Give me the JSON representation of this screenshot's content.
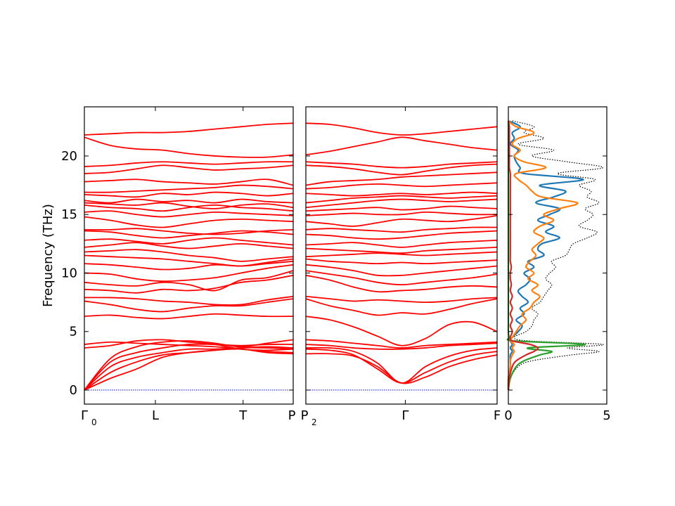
{
  "chart_data": [
    {
      "type": "line",
      "panel": "band-structure-left",
      "ylabel": "Frequency (THz)",
      "xticks": [
        "Γ",
        "L",
        "T",
        "P"
      ],
      "xticks_sub": [
        "0",
        "",
        "",
        ""
      ],
      "ylim": [
        -1.2,
        24.2
      ],
      "yticks": [
        0,
        5,
        10,
        15,
        20
      ],
      "band_color": "#ff0000",
      "zero_line_color": "#0000ff",
      "x": [
        0,
        0.125,
        0.25,
        0.375,
        0.5,
        0.625,
        0.75,
        0.875,
        1.0
      ],
      "ticks_at": [
        0,
        0.34,
        0.76,
        1.0
      ],
      "bands": [
        [
          0,
          1.0,
          1.8,
          2.8,
          3.2,
          3.4,
          3.5,
          3.2,
          3.1
        ],
        [
          0,
          1.5,
          2.4,
          3.0,
          3.2,
          3.4,
          3.6,
          3.6,
          3.5
        ],
        [
          0,
          2.0,
          2.8,
          3.2,
          3.5,
          3.5,
          3.6,
          3.7,
          3.6
        ],
        [
          0,
          2.4,
          3.2,
          3.6,
          3.9,
          3.9,
          3.8,
          3.9,
          3.9
        ],
        [
          0,
          2.7,
          3.7,
          4.1,
          4.2,
          4.0,
          3.7,
          4.0,
          4.3
        ],
        [
          3.6,
          3.8,
          4.2,
          4.3,
          4.1,
          3.9,
          3.5,
          3.4,
          3.5
        ],
        [
          3.9,
          4.1,
          4.0,
          3.9,
          3.8,
          3.7,
          3.5,
          3.3,
          3.2
        ],
        [
          6.3,
          6.4,
          6.2,
          6.1,
          6.3,
          6.5,
          6.4,
          6.3,
          6.3
        ],
        [
          7.6,
          7.3,
          6.9,
          6.7,
          7.0,
          7.2,
          7.2,
          7.5,
          7.8
        ],
        [
          7.9,
          7.9,
          7.8,
          7.6,
          7.5,
          7.3,
          7.3,
          7.7,
          8.0
        ],
        [
          8.6,
          8.5,
          8.3,
          8.6,
          8.5,
          8.7,
          9.2,
          9.4,
          9.8
        ],
        [
          9.2,
          9.0,
          8.9,
          9.2,
          9.0,
          8.5,
          9.4,
          9.6,
          10.2
        ],
        [
          10.0,
          9.9,
          9.5,
          9.3,
          9.4,
          9.6,
          10.0,
          10.4,
          10.7
        ],
        [
          10.8,
          10.7,
          10.5,
          10.3,
          10.4,
          10.7,
          10.6,
          10.9,
          11.2
        ],
        [
          11.5,
          11.4,
          11.3,
          11.2,
          11.0,
          10.8,
          10.6,
          10.8,
          11.0
        ],
        [
          11.8,
          11.9,
          12.0,
          11.8,
          11.5,
          11.3,
          11.0,
          11.2,
          11.4
        ],
        [
          12.2,
          12.4,
          12.6,
          12.3,
          12.1,
          12.3,
          12.5,
          12.3,
          12.1
        ],
        [
          12.8,
          12.9,
          12.7,
          12.5,
          12.8,
          13.0,
          12.8,
          12.6,
          12.4
        ],
        [
          13.6,
          13.5,
          13.2,
          13.0,
          13.2,
          13.4,
          13.6,
          13.5,
          13.3
        ],
        [
          13.7,
          13.7,
          13.8,
          13.6,
          13.4,
          13.3,
          13.4,
          13.6,
          13.7
        ],
        [
          14.8,
          14.5,
          14.1,
          13.9,
          14.2,
          14.5,
          14.6,
          14.5,
          14.4
        ],
        [
          15.2,
          15.3,
          15.0,
          14.8,
          15.0,
          15.2,
          15.1,
          15.0,
          14.9
        ],
        [
          15.8,
          15.6,
          15.5,
          15.3,
          15.6,
          15.8,
          15.6,
          15.5,
          15.3
        ],
        [
          16.0,
          15.9,
          15.8,
          16.0,
          15.7,
          15.5,
          15.8,
          15.9,
          15.6
        ],
        [
          16.2,
          16.0,
          16.3,
          16.1,
          16.2,
          16.0,
          16.3,
          16.1,
          16.0
        ],
        [
          16.7,
          16.6,
          16.5,
          16.8,
          16.7,
          16.9,
          16.8,
          16.6,
          16.8
        ],
        [
          16.9,
          16.9,
          17.0,
          17.1,
          17.2,
          17.3,
          17.5,
          17.4,
          17.2
        ],
        [
          17.8,
          17.9,
          18.0,
          17.8,
          17.7,
          17.6,
          17.8,
          18.0,
          17.5
        ],
        [
          18.5,
          18.6,
          18.9,
          19.2,
          19.0,
          18.8,
          18.9,
          19.0,
          19.2
        ],
        [
          19.1,
          19.2,
          19.4,
          19.5,
          19.4,
          19.3,
          19.4,
          19.5,
          19.5
        ],
        [
          21.6,
          20.9,
          20.6,
          20.5,
          20.2,
          20.0,
          19.9,
          19.9,
          20.1
        ],
        [
          21.8,
          21.9,
          22.0,
          22.0,
          22.1,
          22.3,
          22.5,
          22.7,
          22.8
        ]
      ]
    },
    {
      "type": "line",
      "panel": "band-structure-right",
      "xticks": [
        "P",
        "Γ",
        "F"
      ],
      "xticks_sub": [
        "2",
        "",
        ""
      ],
      "ylim": [
        -1.2,
        24.2
      ],
      "band_color": "#ff0000",
      "zero_line_color": "#0000ff",
      "x": [
        0,
        0.125,
        0.25,
        0.375,
        0.5,
        0.625,
        0.75,
        0.875,
        1.0
      ],
      "ticks_at": [
        0,
        0.52,
        1.0
      ],
      "bands": [
        [
          3.1,
          3.1,
          2.9,
          2.0,
          0.6,
          1.1,
          2.0,
          2.6,
          3.0
        ],
        [
          3.5,
          3.4,
          3.0,
          1.8,
          0.6,
          1.5,
          2.4,
          3.0,
          3.3
        ],
        [
          3.6,
          3.6,
          3.3,
          2.3,
          0.6,
          2.0,
          2.9,
          3.4,
          3.6
        ],
        [
          3.9,
          3.8,
          3.6,
          3.5,
          3.5,
          3.6,
          3.8,
          3.9,
          4.0
        ],
        [
          4.3,
          4.2,
          4.0,
          3.8,
          3.6,
          3.8,
          3.9,
          4.0,
          4.1
        ],
        [
          6.3,
          6.0,
          5.4,
          4.6,
          3.8,
          4.4,
          5.6,
          5.8,
          5.0
        ],
        [
          7.8,
          7.2,
          6.8,
          6.4,
          6.6,
          6.5,
          6.9,
          7.4,
          7.8
        ],
        [
          8.0,
          7.8,
          7.6,
          7.7,
          7.6,
          7.5,
          7.6,
          7.8,
          7.9
        ],
        [
          9.8,
          9.4,
          8.8,
          8.4,
          8.5,
          8.6,
          8.8,
          8.9,
          8.8
        ],
        [
          10.2,
          9.9,
          9.6,
          9.2,
          9.0,
          9.2,
          9.4,
          9.6,
          9.9
        ],
        [
          10.7,
          10.5,
          10.2,
          9.8,
          9.8,
          10.0,
          10.2,
          10.4,
          10.6
        ],
        [
          11.2,
          11.0,
          10.9,
          10.8,
          10.9,
          10.8,
          10.9,
          11.0,
          11.1
        ],
        [
          11.4,
          11.5,
          11.6,
          11.7,
          11.6,
          11.5,
          11.6,
          11.7,
          11.8
        ],
        [
          12.1,
          12.0,
          11.9,
          11.8,
          11.7,
          11.9,
          12.0,
          12.1,
          12.2
        ],
        [
          12.4,
          12.5,
          12.6,
          12.4,
          12.2,
          12.4,
          12.6,
          12.7,
          12.8
        ],
        [
          13.3,
          13.2,
          13.0,
          12.9,
          13.0,
          13.2,
          13.4,
          13.5,
          13.6
        ],
        [
          13.7,
          13.8,
          13.7,
          13.6,
          13.5,
          13.7,
          13.8,
          13.9,
          13.9
        ],
        [
          14.4,
          14.2,
          14.0,
          14.3,
          14.6,
          14.5,
          14.4,
          14.6,
          14.9
        ],
        [
          14.9,
          15.0,
          15.1,
          15.0,
          15.0,
          15.2,
          15.1,
          15.0,
          15.0
        ],
        [
          15.3,
          15.4,
          15.5,
          15.6,
          15.4,
          15.5,
          15.7,
          15.6,
          15.5
        ],
        [
          15.6,
          15.8,
          16.0,
          16.2,
          16.3,
          16.2,
          16.1,
          16.2,
          16.3
        ],
        [
          16.0,
          16.2,
          16.4,
          16.5,
          16.6,
          16.5,
          16.4,
          16.5,
          16.6
        ],
        [
          16.8,
          16.7,
          16.6,
          16.7,
          16.8,
          16.7,
          16.8,
          16.9,
          16.8
        ],
        [
          17.2,
          17.3,
          17.5,
          17.6,
          17.5,
          17.4,
          17.5,
          17.6,
          17.7
        ],
        [
          17.5,
          17.8,
          17.9,
          18.0,
          18.2,
          18.3,
          18.4,
          18.5,
          18.6
        ],
        [
          19.2,
          19.1,
          18.9,
          18.6,
          18.4,
          18.7,
          19.0,
          19.2,
          19.3
        ],
        [
          19.5,
          19.4,
          19.3,
          19.1,
          19.0,
          19.1,
          19.3,
          19.4,
          19.5
        ],
        [
          20.1,
          20.4,
          20.8,
          21.2,
          21.6,
          21.3,
          21.0,
          20.7,
          20.5
        ],
        [
          22.8,
          22.7,
          22.4,
          22.0,
          21.8,
          21.9,
          22.1,
          22.3,
          22.5
        ]
      ]
    },
    {
      "type": "line",
      "panel": "density-of-states",
      "orientation": "horizontal",
      "xticks": [
        "0",
        "5"
      ],
      "xlim": [
        0,
        5
      ],
      "ylim": [
        -1.2,
        24.2
      ],
      "freq": [
        0,
        1,
        2,
        2.5,
        3,
        3.3,
        3.6,
        3.9,
        4.2,
        4.5,
        5,
        5.5,
        6,
        6.5,
        7,
        7.5,
        8,
        8.5,
        9,
        9.5,
        10,
        10.5,
        11,
        11.5,
        12,
        12.5,
        13,
        13.5,
        14,
        14.5,
        15,
        15.5,
        16,
        16.5,
        17,
        17.5,
        18,
        18.5,
        19,
        19.5,
        20,
        20.5,
        21,
        21.5,
        22,
        22.5,
        23
      ],
      "series": [
        {
          "color": "#000000",
          "style": "dotted",
          "values": [
            0,
            0.1,
            0.5,
            1.2,
            3.2,
            4.6,
            3.0,
            4.8,
            1.0,
            0.3,
            0.9,
            1.2,
            1.3,
            1.5,
            1.2,
            1.6,
            1.8,
            2.0,
            2.2,
            1.9,
            2.1,
            2.4,
            2.2,
            2.9,
            3.1,
            3.3,
            4.0,
            4.5,
            3.6,
            4.0,
            4.3,
            3.9,
            4.6,
            4.0,
            4.2,
            3.6,
            4.4,
            2.5,
            4.8,
            3.0,
            1.2,
            2.3,
            0.5,
            1.8,
            0.8,
            1.3,
            0.2
          ]
        },
        {
          "color": "#1f77b4",
          "style": "solid",
          "values": [
            0,
            0.0,
            0.1,
            0.1,
            0.1,
            0.2,
            0.1,
            0.2,
            0.1,
            0.2,
            0.5,
            0.7,
            0.4,
            0.8,
            0.6,
            1.0,
            0.7,
            0.5,
            0.9,
            1.1,
            0.8,
            1.3,
            1.0,
            1.8,
            1.5,
            1.7,
            2.6,
            1.9,
            2.3,
            1.5,
            2.1,
            2.6,
            1.4,
            2.3,
            2.9,
            1.6,
            3.8,
            0.8,
            0.6,
            0.4,
            0.3,
            0.5,
            0.1,
            0.3,
            0.2,
            0.6,
            0.0
          ]
        },
        {
          "color": "#ff7f0e",
          "style": "solid",
          "values": [
            0,
            0.0,
            0.1,
            0.1,
            0.2,
            0.3,
            0.2,
            0.3,
            0.1,
            0.2,
            0.4,
            0.6,
            0.9,
            0.7,
            1.1,
            1.3,
            1.6,
            1.2,
            1.5,
            1.0,
            1.3,
            0.9,
            1.1,
            1.4,
            1.2,
            1.5,
            1.8,
            1.3,
            1.6,
            2.3,
            1.8,
            2.6,
            3.5,
            1.7,
            1.2,
            0.9,
            0.5,
            0.4,
            1.9,
            0.8,
            0.3,
            0.6,
            0.2,
            0.5,
            1.3,
            0.4,
            0.0
          ]
        },
        {
          "color": "#2ca02c",
          "style": "solid",
          "values": [
            0,
            0.1,
            0.4,
            0.8,
            1.6,
            2.2,
            1.0,
            3.9,
            0.3,
            0.05,
            0.0,
            0.0,
            0.0,
            0.0,
            0.0,
            0.0,
            0.0,
            0.0,
            0.0,
            0.0,
            0.0,
            0.0,
            0.0,
            0.0,
            0.0,
            0.0,
            0.0,
            0.0,
            0.0,
            0.0,
            0.0,
            0.0,
            0.0,
            0.0,
            0.0,
            0.0,
            0.0,
            0.0,
            0.0,
            0.0,
            0.0,
            0.0,
            0.0,
            0.0,
            0.0,
            0.0,
            0.0
          ]
        },
        {
          "color": "#d62728",
          "style": "solid",
          "values": [
            0,
            0.05,
            0.2,
            0.4,
            0.9,
            1.3,
            1.5,
            1.1,
            0.2,
            0.1,
            0.2,
            0.1,
            0.2,
            0.1,
            0.2,
            0.1,
            0.2,
            0.1,
            0.15,
            0.1,
            0.1,
            0.15,
            0.1,
            0.1,
            0.1,
            0.1,
            0.1,
            0.1,
            0.1,
            0.1,
            0.1,
            0.1,
            0.1,
            0.1,
            0.1,
            0.1,
            0.1,
            0.1,
            0.05,
            0.05,
            0.05,
            0.05,
            0.05,
            0.05,
            0.05,
            0.05,
            0.0
          ]
        }
      ]
    }
  ]
}
